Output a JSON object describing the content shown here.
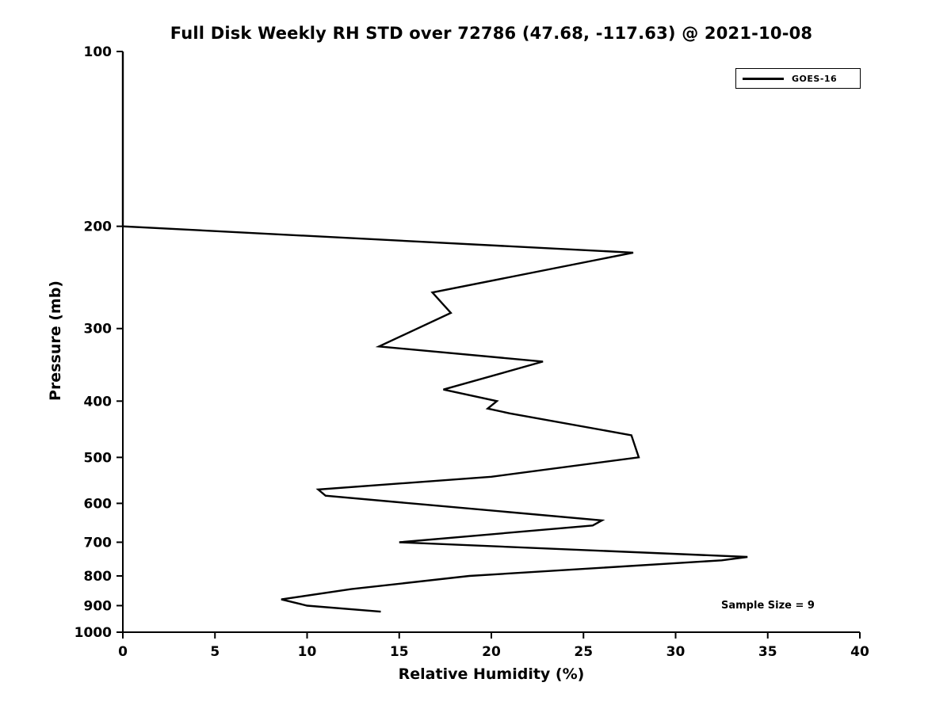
{
  "title": "Full Disk Weekly RH STD over 72786 (47.68, -117.63) @ 2021-10-08",
  "annotation": "Sample Size = 9",
  "legend": {
    "entries": [
      {
        "label": "GOES-16",
        "color": "#000000",
        "line_width": 3
      }
    ],
    "position": "upper right"
  },
  "chart_data": {
    "type": "line",
    "title": "Full Disk Weekly RH STD over 72786 (47.68, -117.63) @ 2021-10-08",
    "xlabel": "Relative Humidity (%)",
    "ylabel": "Pressure (mb)",
    "xlim": [
      0,
      40
    ],
    "ylim": [
      1000,
      100
    ],
    "yscale": "log",
    "y_inverted": true,
    "grid": false,
    "xticks": [
      0,
      5,
      10,
      15,
      20,
      25,
      30,
      35,
      40
    ],
    "yticks": [
      100,
      200,
      300,
      400,
      500,
      600,
      700,
      800,
      900,
      1000
    ],
    "line_color": "#000000",
    "series": [
      {
        "name": "GOES-16",
        "color": "#000000",
        "x_rh_std_percent": [
          0.0,
          0.0,
          27.7,
          16.8,
          17.8,
          13.9,
          22.8,
          17.4,
          20.3,
          19.8,
          21.0,
          27.6,
          28.0,
          20.0,
          10.6,
          11.0,
          26.0,
          25.5,
          15.0,
          33.9,
          32.5,
          18.8,
          12.4,
          8.6,
          10.0,
          14.0
        ],
        "y_pressure_mb": [
          100,
          200,
          222,
          260,
          282,
          322,
          342,
          382,
          400,
          412,
          420,
          458,
          500,
          540,
          568,
          582,
          642,
          655,
          700,
          742,
          752,
          800,
          843,
          878,
          900,
          922
        ]
      }
    ],
    "annotations": [
      {
        "text": "Sample Size = 9",
        "x_approx": 32.5,
        "y_approx": 890
      }
    ],
    "legend_position": "upper right"
  }
}
